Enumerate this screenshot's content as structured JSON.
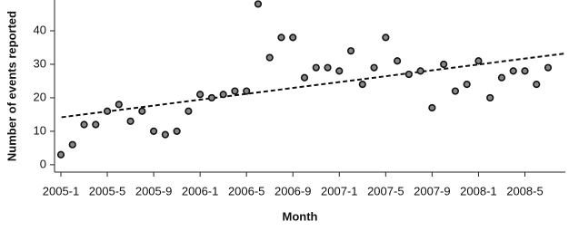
{
  "chart_data": {
    "type": "scatter",
    "x_label": "Month",
    "y_label": "Number of events reported",
    "categories": [
      "2005-1",
      null,
      null,
      null,
      "2005-5",
      null,
      null,
      null,
      "2005-9",
      null,
      null,
      null,
      "2006-1",
      null,
      null,
      null,
      "2006-5",
      null,
      null,
      null,
      "2006-9",
      null,
      null,
      null,
      "2007-1",
      null,
      null,
      null,
      "2007-5",
      null,
      null,
      null,
      "2007-9",
      null,
      null,
      null,
      "2008-1",
      null,
      null,
      null,
      "2008-5",
      null,
      null
    ],
    "values": [
      3,
      6,
      12,
      12,
      16,
      18,
      13,
      16,
      10,
      9,
      10,
      16,
      21,
      20,
      21,
      22,
      22,
      48,
      32,
      38,
      38,
      26,
      29,
      29,
      28,
      34,
      24,
      29,
      38,
      31,
      27,
      28,
      17,
      30,
      22,
      24,
      31,
      20,
      26,
      28,
      28,
      24,
      29
    ],
    "color": "#888888",
    "trend_line": true,
    "ylim": [
      -2.2,
      49.2
    ],
    "yticks": [
      0,
      10,
      20,
      30,
      40
    ]
  }
}
